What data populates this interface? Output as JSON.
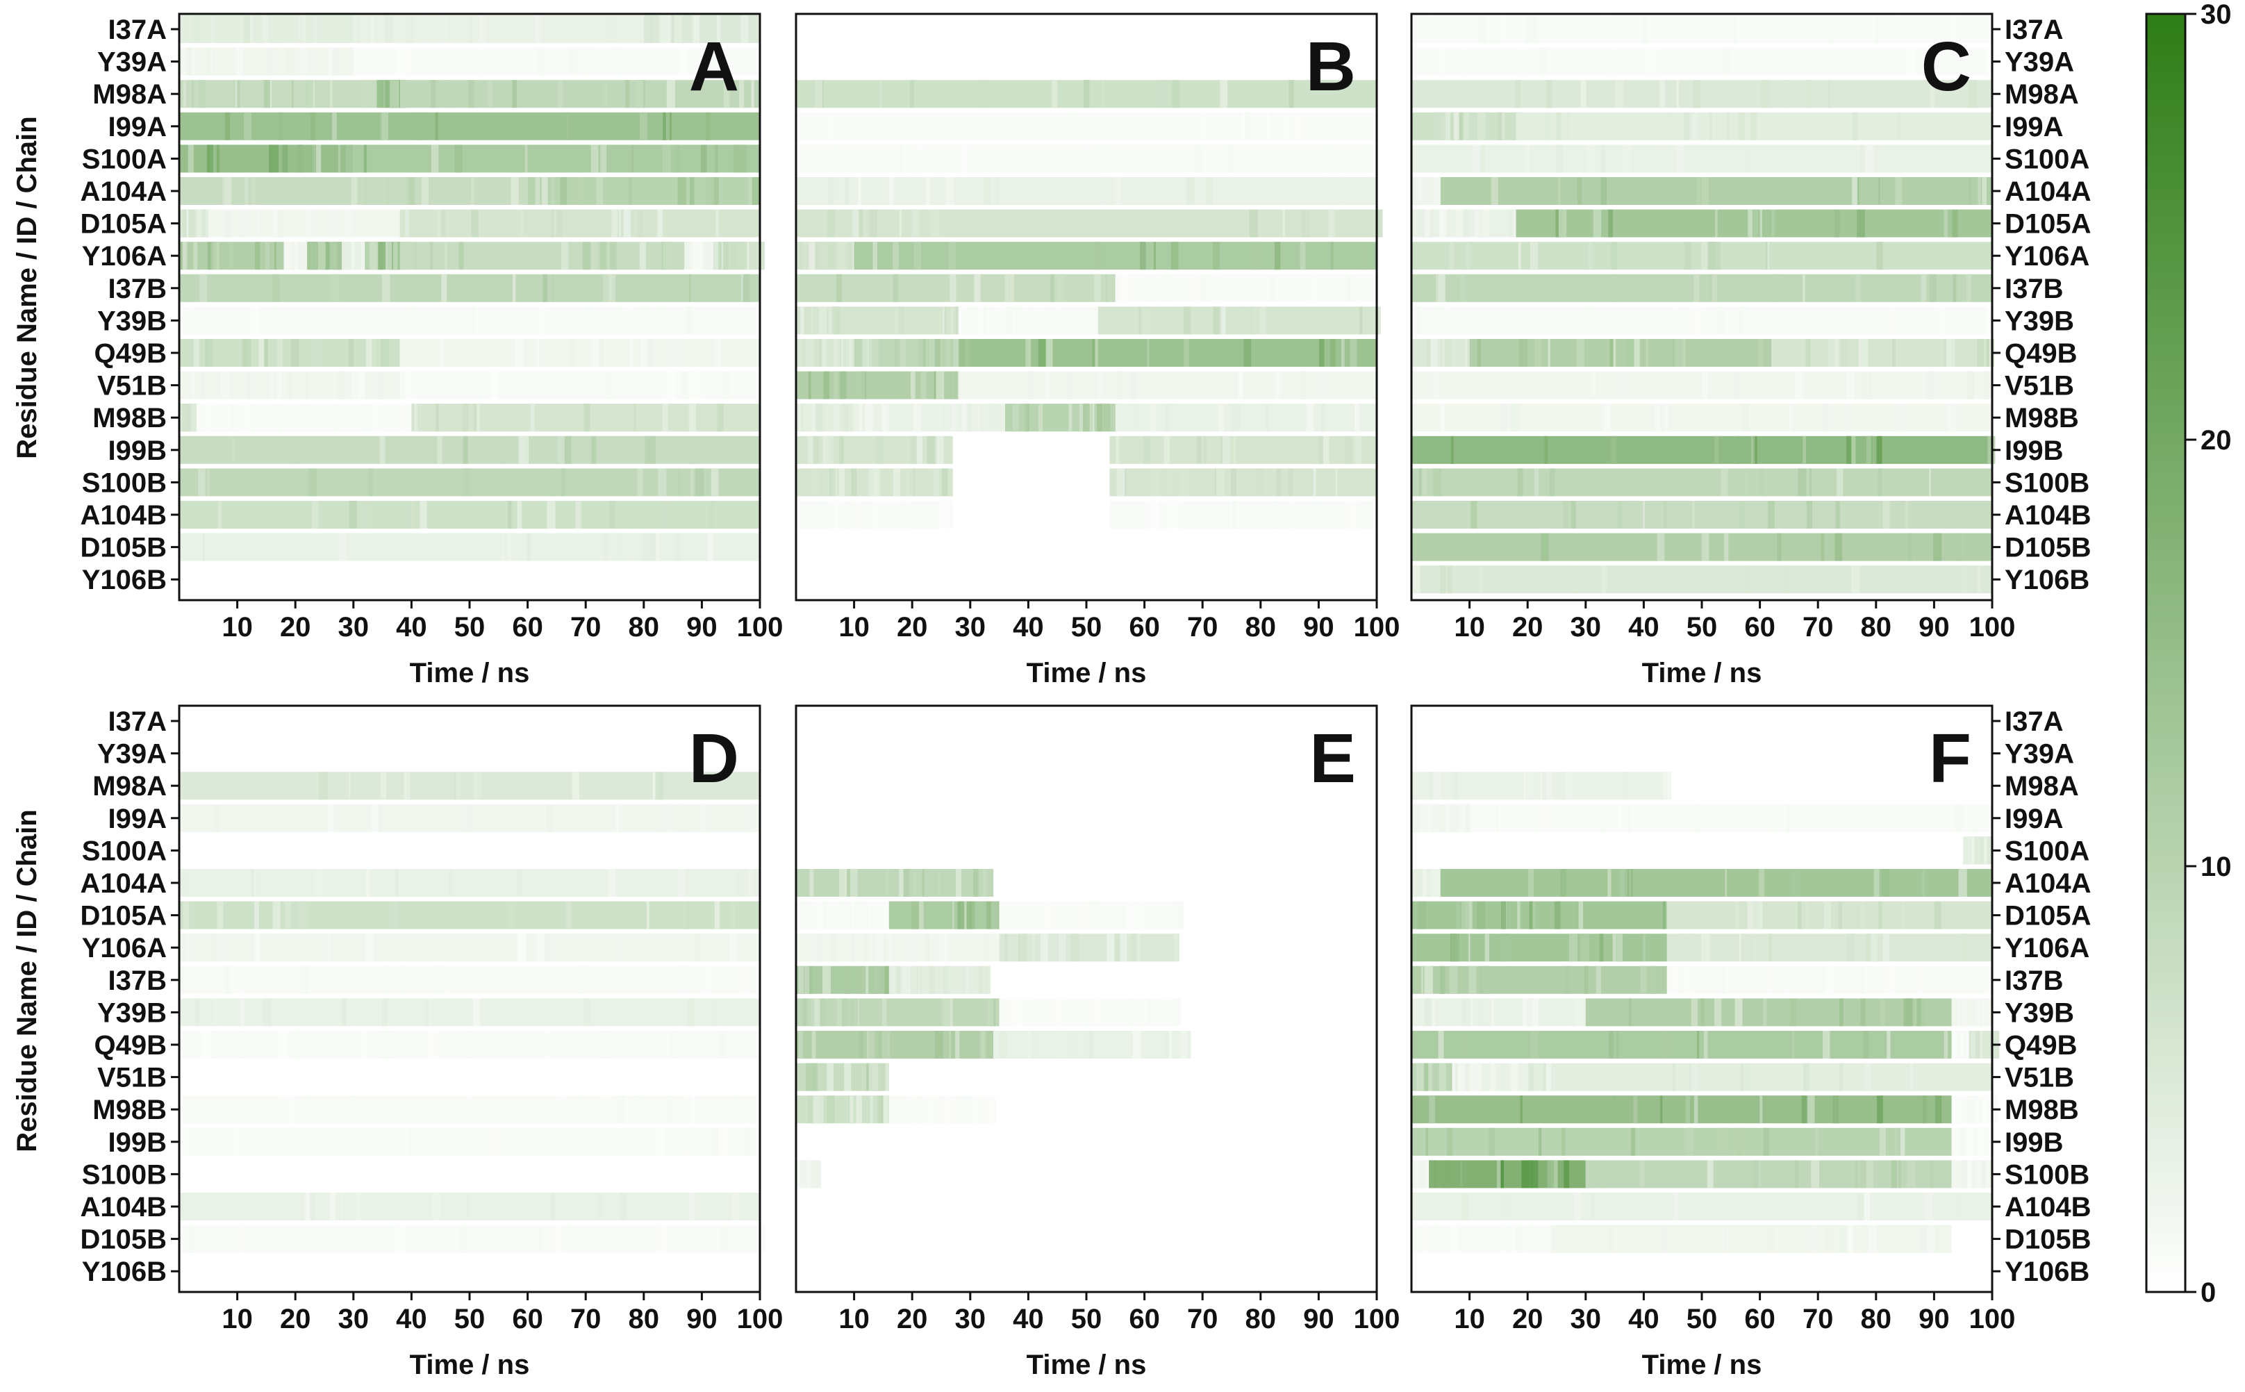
{
  "chart_data": {
    "type": "heatmap",
    "title": "",
    "xlabel": "Time / ns",
    "ylabel": "Residue Name / ID / Chain",
    "xlim": [
      0,
      100
    ],
    "x_ticks": [
      "10",
      "20",
      "30",
      "40",
      "50",
      "60",
      "70",
      "80",
      "90",
      "100"
    ],
    "residues": [
      "I37A",
      "Y39A",
      "M98A",
      "I99A",
      "S100A",
      "A104A",
      "D105A",
      "Y106A",
      "I37B",
      "Y39B",
      "Q49B",
      "V51B",
      "M98B",
      "I99B",
      "S100B",
      "A104B",
      "D105B",
      "Y106B"
    ],
    "colorbar": {
      "min": 0,
      "max": 30,
      "ticks": [
        "0",
        "10",
        "20",
        "30"
      ],
      "color_low": "#ffffff",
      "color_high": "#2e7d16"
    },
    "panel_segment_format": "start_ns, end_ns, contact_value (0-30)",
    "panels": [
      {
        "label": "A",
        "rows": [
          [
            [
              0,
              30,
              4
            ],
            [
              30,
              80,
              3
            ],
            [
              80,
              100,
              5
            ]
          ],
          [
            [
              0,
              30,
              2
            ],
            [
              30,
              100,
              1
            ]
          ],
          [
            [
              0,
              34,
              8
            ],
            [
              34,
              38,
              14
            ],
            [
              38,
              100,
              9
            ]
          ],
          [
            [
              0,
              100,
              14
            ]
          ],
          [
            [
              0,
              30,
              15
            ],
            [
              30,
              100,
              12
            ]
          ],
          [
            [
              0,
              60,
              8
            ],
            [
              60,
              100,
              10
            ]
          ],
          [
            [
              0,
              5,
              5
            ],
            [
              5,
              38,
              2
            ],
            [
              38,
              100,
              6
            ]
          ],
          [
            [
              0,
              18,
              11
            ],
            [
              18,
              22,
              2
            ],
            [
              22,
              28,
              12
            ],
            [
              28,
              32,
              3
            ],
            [
              32,
              38,
              13
            ],
            [
              38,
              87,
              8
            ],
            [
              87,
              92,
              2
            ],
            [
              92,
              100,
              7
            ]
          ],
          [
            [
              0,
              100,
              9
            ]
          ],
          [
            [
              0,
              100,
              1
            ]
          ],
          [
            [
              0,
              38,
              7
            ],
            [
              38,
              100,
              2
            ]
          ],
          [
            [
              0,
              38,
              2
            ],
            [
              38,
              100,
              1
            ]
          ],
          [
            [
              0,
              3,
              6
            ],
            [
              3,
              40,
              1
            ],
            [
              40,
              100,
              6
            ]
          ],
          [
            [
              0,
              100,
              8
            ]
          ],
          [
            [
              0,
              100,
              9
            ]
          ],
          [
            [
              0,
              100,
              7
            ]
          ],
          [
            [
              0,
              100,
              3
            ]
          ],
          [
            [
              0,
              100,
              0
            ]
          ]
        ]
      },
      {
        "label": "B",
        "rows": [
          [
            [
              0,
              100,
              0
            ]
          ],
          [
            [
              0,
              100,
              0
            ]
          ],
          [
            [
              0,
              100,
              7
            ]
          ],
          [
            [
              0,
              100,
              1
            ]
          ],
          [
            [
              0,
              100,
              1
            ]
          ],
          [
            [
              0,
              100,
              3
            ]
          ],
          [
            [
              0,
              100,
              6
            ]
          ],
          [
            [
              0,
              10,
              6
            ],
            [
              10,
              100,
              12
            ]
          ],
          [
            [
              0,
              55,
              8
            ],
            [
              55,
              100,
              1
            ]
          ],
          [
            [
              0,
              28,
              6
            ],
            [
              28,
              52,
              1
            ],
            [
              52,
              100,
              6
            ]
          ],
          [
            [
              0,
              10,
              6
            ],
            [
              10,
              28,
              9
            ],
            [
              28,
              100,
              14
            ]
          ],
          [
            [
              0,
              28,
              11
            ],
            [
              28,
              100,
              2
            ]
          ],
          [
            [
              0,
              10,
              4
            ],
            [
              10,
              36,
              3
            ],
            [
              36,
              55,
              10
            ],
            [
              55,
              100,
              3
            ]
          ],
          [
            [
              0,
              27,
              6
            ],
            [
              27,
              54,
              0
            ],
            [
              54,
              100,
              6
            ]
          ],
          [
            [
              0,
              27,
              6
            ],
            [
              27,
              54,
              0
            ],
            [
              54,
              100,
              6
            ]
          ],
          [
            [
              0,
              27,
              1
            ],
            [
              27,
              54,
              0
            ],
            [
              54,
              100,
              1
            ]
          ],
          [
            [
              0,
              100,
              0
            ]
          ],
          [
            [
              0,
              100,
              0
            ]
          ]
        ]
      },
      {
        "label": "C",
        "rows": [
          [
            [
              0,
              100,
              1
            ]
          ],
          [
            [
              0,
              100,
              1
            ]
          ],
          [
            [
              0,
              100,
              5
            ]
          ],
          [
            [
              0,
              18,
              7
            ],
            [
              18,
              100,
              4
            ]
          ],
          [
            [
              0,
              100,
              3
            ]
          ],
          [
            [
              0,
              5,
              2
            ],
            [
              5,
              100,
              11
            ]
          ],
          [
            [
              0,
              18,
              3
            ],
            [
              18,
              100,
              13
            ]
          ],
          [
            [
              0,
              100,
              7
            ]
          ],
          [
            [
              0,
              100,
              9
            ]
          ],
          [
            [
              0,
              100,
              1
            ]
          ],
          [
            [
              0,
              10,
              5
            ],
            [
              10,
              62,
              11
            ],
            [
              62,
              100,
              6
            ]
          ],
          [
            [
              0,
              100,
              2
            ]
          ],
          [
            [
              0,
              100,
              2
            ]
          ],
          [
            [
              0,
              100,
              16
            ]
          ],
          [
            [
              0,
              100,
              9
            ]
          ],
          [
            [
              0,
              100,
              8
            ]
          ],
          [
            [
              0,
              100,
              11
            ]
          ],
          [
            [
              0,
              100,
              5
            ]
          ]
        ]
      },
      {
        "label": "D",
        "rows": [
          [
            [
              0,
              100,
              0
            ]
          ],
          [
            [
              0,
              100,
              0
            ]
          ],
          [
            [
              0,
              100,
              5
            ]
          ],
          [
            [
              0,
              100,
              2
            ]
          ],
          [
            [
              0,
              100,
              0
            ]
          ],
          [
            [
              0,
              100,
              3
            ]
          ],
          [
            [
              0,
              100,
              7
            ]
          ],
          [
            [
              0,
              100,
              2
            ]
          ],
          [
            [
              0,
              100,
              1
            ]
          ],
          [
            [
              0,
              100,
              3
            ]
          ],
          [
            [
              0,
              100,
              1
            ]
          ],
          [
            [
              0,
              100,
              0
            ]
          ],
          [
            [
              0,
              100,
              1
            ]
          ],
          [
            [
              0,
              100,
              1
            ]
          ],
          [
            [
              0,
              100,
              0
            ]
          ],
          [
            [
              0,
              100,
              3
            ]
          ],
          [
            [
              0,
              100,
              1
            ]
          ],
          [
            [
              0,
              100,
              0
            ]
          ]
        ]
      },
      {
        "label": "E",
        "rows": [
          [
            [
              0,
              100,
              0
            ]
          ],
          [
            [
              0,
              100,
              0
            ]
          ],
          [
            [
              0,
              100,
              0
            ]
          ],
          [
            [
              0,
              100,
              0
            ]
          ],
          [
            [
              0,
              100,
              0
            ]
          ],
          [
            [
              0,
              34,
              9
            ],
            [
              34,
              100,
              0
            ]
          ],
          [
            [
              0,
              16,
              1
            ],
            [
              16,
              35,
              12
            ],
            [
              35,
              66,
              1
            ],
            [
              66,
              100,
              0
            ]
          ],
          [
            [
              0,
              35,
              2
            ],
            [
              35,
              66,
              5
            ],
            [
              66,
              100,
              0
            ]
          ],
          [
            [
              0,
              16,
              12
            ],
            [
              16,
              33,
              4
            ],
            [
              33,
              100,
              0
            ]
          ],
          [
            [
              0,
              35,
              9
            ],
            [
              35,
              66,
              1
            ],
            [
              66,
              100,
              0
            ]
          ],
          [
            [
              0,
              34,
              11
            ],
            [
              34,
              68,
              3
            ],
            [
              68,
              100,
              0
            ]
          ],
          [
            [
              0,
              16,
              8
            ],
            [
              16,
              100,
              0
            ]
          ],
          [
            [
              0,
              16,
              7
            ],
            [
              16,
              34,
              1
            ],
            [
              34,
              100,
              0
            ]
          ],
          [
            [
              0,
              100,
              0
            ]
          ],
          [
            [
              0,
              3,
              2
            ],
            [
              3,
              100,
              0
            ]
          ],
          [
            [
              0,
              100,
              0
            ]
          ],
          [
            [
              0,
              100,
              0
            ]
          ],
          [
            [
              0,
              100,
              0
            ]
          ]
        ]
      },
      {
        "label": "F",
        "rows": [
          [
            [
              0,
              100,
              0
            ]
          ],
          [
            [
              0,
              100,
              0
            ]
          ],
          [
            [
              0,
              44,
              3
            ],
            [
              44,
              100,
              0
            ]
          ],
          [
            [
              0,
              10,
              2
            ],
            [
              10,
              100,
              1
            ]
          ],
          [
            [
              0,
              95,
              0
            ],
            [
              95,
              100,
              4
            ]
          ],
          [
            [
              0,
              5,
              3
            ],
            [
              5,
              100,
              13
            ]
          ],
          [
            [
              0,
              44,
              13
            ],
            [
              44,
              100,
              6
            ]
          ],
          [
            [
              0,
              44,
              13
            ],
            [
              44,
              100,
              5
            ]
          ],
          [
            [
              0,
              44,
              11
            ],
            [
              44,
              100,
              1
            ]
          ],
          [
            [
              0,
              30,
              3
            ],
            [
              30,
              93,
              11
            ],
            [
              93,
              100,
              2
            ]
          ],
          [
            [
              0,
              93,
              12
            ],
            [
              93,
              96,
              1
            ],
            [
              96,
              100,
              6
            ]
          ],
          [
            [
              0,
              7,
              9
            ],
            [
              7,
              20,
              3
            ],
            [
              20,
              100,
              4
            ]
          ],
          [
            [
              0,
              93,
              15
            ],
            [
              93,
              100,
              1
            ]
          ],
          [
            [
              0,
              93,
              10
            ],
            [
              93,
              100,
              1
            ]
          ],
          [
            [
              0,
              3,
              2
            ],
            [
              3,
              30,
              18
            ],
            [
              30,
              93,
              9
            ],
            [
              93,
              100,
              2
            ]
          ],
          [
            [
              0,
              100,
              3
            ]
          ],
          [
            [
              0,
              24,
              1
            ],
            [
              24,
              93,
              2
            ],
            [
              93,
              100,
              0
            ]
          ],
          [
            [
              0,
              100,
              0
            ]
          ]
        ]
      }
    ]
  }
}
